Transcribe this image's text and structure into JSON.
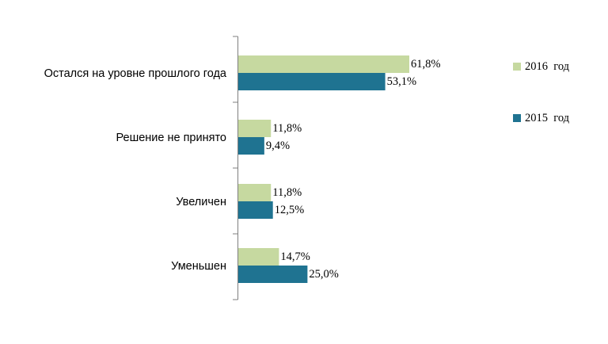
{
  "chart_data": {
    "type": "bar",
    "orientation": "horizontal",
    "categories": [
      "Остался на уровне прошлого года",
      "Решение не принято",
      "Увеличен",
      "Уменьшен"
    ],
    "series": [
      {
        "name": "2016  год",
        "values": [
          61.8,
          11.8,
          11.8,
          14.7
        ],
        "labels": [
          "61,8%",
          "11,8%",
          "11,8%",
          "14,7%"
        ],
        "color": "#c6d9a0"
      },
      {
        "name": "2015  год",
        "values": [
          53.1,
          9.4,
          12.5,
          25.0
        ],
        "labels": [
          "53,1%",
          "9,4%",
          "12,5%",
          "25,0%"
        ],
        "color": "#1f7391"
      }
    ],
    "xlim": [
      0,
      100
    ],
    "grid": false,
    "legend": "right",
    "title": "",
    "xlabel": "",
    "ylabel": ""
  }
}
